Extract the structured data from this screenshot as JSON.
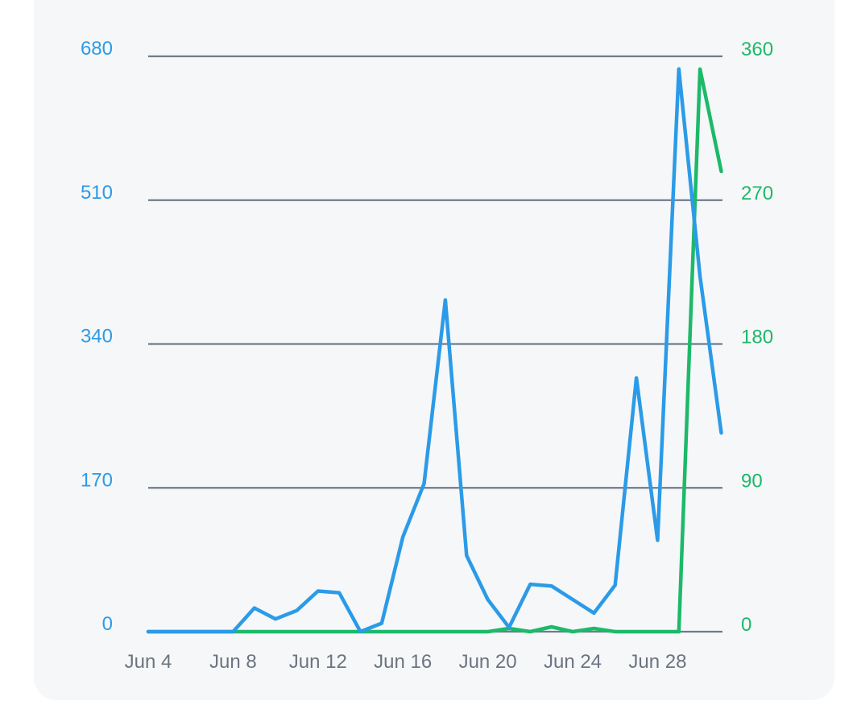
{
  "chart_data": {
    "type": "line",
    "x": [
      "Jun 4",
      "Jun 5",
      "Jun 6",
      "Jun 7",
      "Jun 8",
      "Jun 9",
      "Jun 10",
      "Jun 11",
      "Jun 12",
      "Jun 13",
      "Jun 14",
      "Jun 15",
      "Jun 16",
      "Jun 17",
      "Jun 18",
      "Jun 19",
      "Jun 20",
      "Jun 21",
      "Jun 22",
      "Jun 23",
      "Jun 24",
      "Jun 25",
      "Jun 26",
      "Jun 27",
      "Jun 28",
      "Jun 29",
      "Jun 30",
      "Jul 1"
    ],
    "x_tick_labels": [
      "Jun 4",
      "Jun 8",
      "Jun 12",
      "Jun 16",
      "Jun 20",
      "Jun 24",
      "Jun 28"
    ],
    "y_left": {
      "ticks": [
        "0",
        "170",
        "340",
        "510",
        "680"
      ],
      "range": [
        0,
        680
      ],
      "color": "#2b9be8"
    },
    "y_right": {
      "ticks": [
        "0",
        "90",
        "180",
        "270",
        "360"
      ],
      "range": [
        0,
        360
      ],
      "color": "#1db96a"
    },
    "series": [
      {
        "axis": "left",
        "color": "#2b9be8",
        "values": [
          0,
          0,
          0,
          0,
          0,
          28,
          15,
          25,
          48,
          46,
          0,
          10,
          112,
          175,
          392,
          90,
          38,
          5,
          56,
          54,
          38,
          22,
          55,
          300,
          108,
          665,
          420,
          235
        ]
      },
      {
        "axis": "right",
        "color": "#1db96a",
        "values": [
          0,
          0,
          0,
          0,
          0,
          0,
          0,
          0,
          0,
          0,
          0,
          0,
          0,
          0,
          0,
          0,
          0,
          2,
          0,
          3,
          0,
          2,
          0,
          0,
          0,
          0,
          352,
          288
        ]
      }
    ],
    "grid": true,
    "grid_color": "#6e7b8c"
  }
}
